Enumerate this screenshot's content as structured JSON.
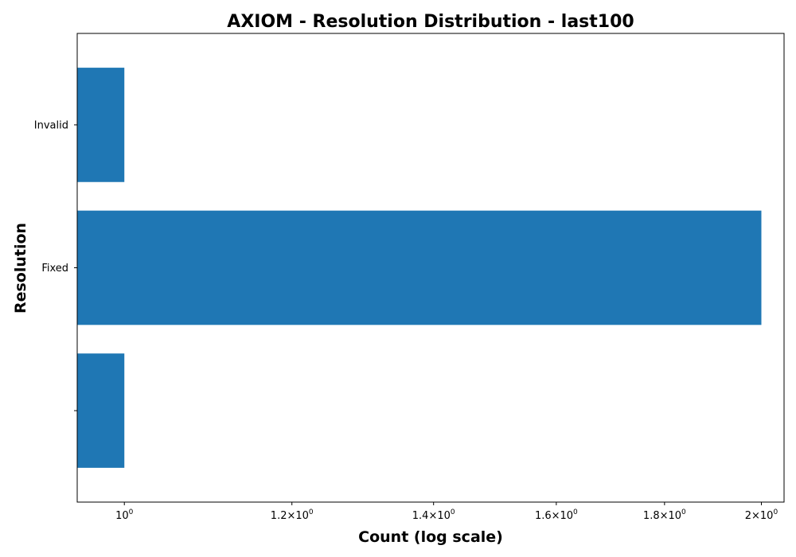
{
  "chart_data": {
    "type": "bar",
    "orientation": "horizontal",
    "title": "AXIOM - Resolution Distribution - last100",
    "xlabel": "Count (log scale)",
    "ylabel": "Resolution",
    "x_scale": "log",
    "xlim": [
      0.95,
      2.05
    ],
    "categories": [
      "",
      "Fixed",
      "Invalid"
    ],
    "values": [
      1,
      2,
      1
    ],
    "x_ticks": [
      {
        "value": 1.0,
        "base": "10",
        "exp": "0"
      },
      {
        "value": 1.2,
        "base": "1.2×10",
        "exp": "0"
      },
      {
        "value": 1.4,
        "base": "1.4×10",
        "exp": "0"
      },
      {
        "value": 1.6,
        "base": "1.6×10",
        "exp": "0"
      },
      {
        "value": 1.8,
        "base": "1.8×10",
        "exp": "0"
      },
      {
        "value": 2.0,
        "base": "2×10",
        "exp": "0"
      }
    ],
    "bar_color": "#1f77b4",
    "grid": false,
    "legend": "none"
  }
}
